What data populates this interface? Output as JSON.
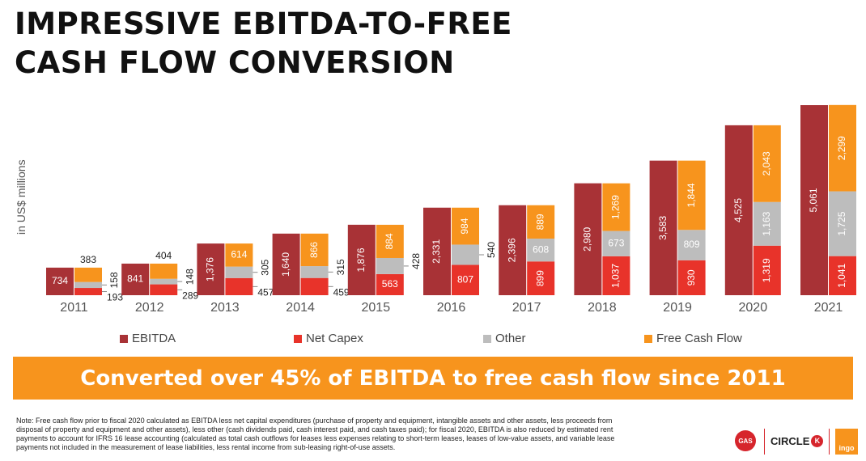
{
  "title_line1": "IMPRESSIVE EBITDA-TO-FREE",
  "title_line2": "CASH FLOW CONVERSION",
  "banner": "Converted over 45% of EBITDA to free cash flow since 2011",
  "note": "Note: Free cash flow prior to fiscal 2020 calculated as EBITDA less net capital expenditures (purchase of property and equipment, intangible assets and other assets, less proceeds from disposal of property and equipment and other assets), less other (cash dividends paid, cash interest paid, and cash taxes paid); for fiscal 2020, EBITDA is also reduced by estimated rent payments to account for IFRS 16 lease accounting (calculated as total cash outflows for leases less expenses relating to short-term leases, leases of low-value assets, and variable lease payments not included in the measurement of lease liabilities, less rental income from sub-leasing right-of-use assets.",
  "logos": {
    "gas": "GAS",
    "circle_k": "CIRCLE",
    "circle_k_mark": "K",
    "ingo": "ingo"
  },
  "colors": {
    "ebitda": "#a83236",
    "net_capex": "#e8332a",
    "other": "#bdbdbd",
    "free_cash_flow": "#f7941d",
    "banner": "#f7941d"
  },
  "chart_data": {
    "type": "bar",
    "ylabel": "in US$ millions",
    "categories": [
      "2011",
      "2012",
      "2013",
      "2014",
      "2015",
      "2016",
      "2017",
      "2018",
      "2019",
      "2020",
      "2021"
    ],
    "series": [
      {
        "name": "EBITDA",
        "values": [
          734,
          841,
          1376,
          1640,
          1876,
          2331,
          2396,
          2980,
          3583,
          4525,
          5061
        ]
      },
      {
        "name": "Net Capex",
        "values": [
          193,
          289,
          457,
          459,
          563,
          807,
          899,
          1037,
          930,
          1319,
          1041
        ]
      },
      {
        "name": "Other",
        "values": [
          158,
          148,
          305,
          315,
          428,
          540,
          608,
          673,
          809,
          1163,
          1725
        ]
      },
      {
        "name": "Free Cash Flow",
        "values": [
          383,
          404,
          614,
          866,
          884,
          984,
          889,
          1269,
          1844,
          2043,
          2299
        ]
      }
    ],
    "stacked_second_bar": [
      "Net Capex",
      "Other",
      "Free Cash Flow"
    ],
    "legend_position": "bottom",
    "grid": false
  }
}
